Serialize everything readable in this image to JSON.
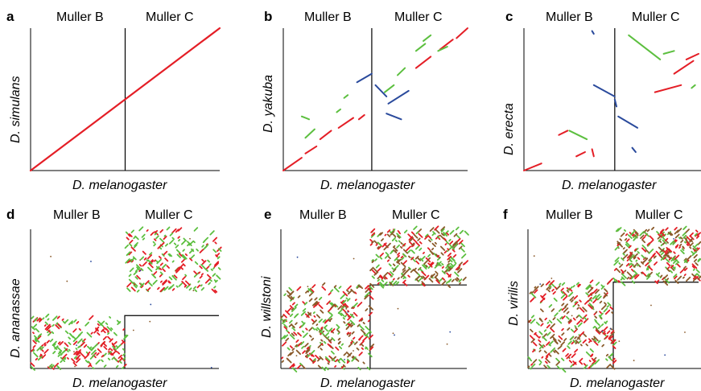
{
  "colors": {
    "axes": "#000000",
    "red": "#e41e26",
    "green": "#5cbf3f",
    "blue": "#2a4a9c",
    "brown": "#8a5a2a"
  },
  "chart_data": [
    {
      "type": "scatter",
      "panel_label": "a",
      "region_labels": [
        "Muller B",
        "Muller C"
      ],
      "xlabel": "D. melanogaster",
      "ylabel": "D. simulans",
      "divider_x_fraction": 0.5,
      "divider_type": "vertical",
      "grid": false,
      "pattern": "collinear",
      "series": [
        {
          "color": "red",
          "segments": [
            [
              0.0,
              0.0,
              0.5,
              0.5
            ],
            [
              0.5,
              0.5,
              1.0,
              1.0
            ]
          ]
        }
      ]
    },
    {
      "type": "scatter",
      "panel_label": "b",
      "region_labels": [
        "Muller B",
        "Muller C"
      ],
      "xlabel": "D. melanogaster",
      "ylabel": "D. yakuba",
      "divider_x_fraction": 0.48,
      "divider_type": "vertical",
      "grid": false,
      "pattern": "rearranged",
      "series": [
        {
          "color": "red",
          "segments": [
            [
              0.0,
              0.0,
              0.1,
              0.09
            ],
            [
              0.12,
              0.12,
              0.18,
              0.17
            ],
            [
              0.2,
              0.22,
              0.26,
              0.28
            ],
            [
              0.3,
              0.3,
              0.38,
              0.37
            ],
            [
              0.41,
              0.36,
              0.44,
              0.39
            ],
            [
              0.72,
              0.72,
              0.8,
              0.8
            ],
            [
              0.85,
              0.85,
              0.92,
              0.92
            ],
            [
              0.94,
              0.93,
              1.0,
              1.0
            ]
          ]
        },
        {
          "color": "green",
          "segments": [
            [
              0.14,
              0.36,
              0.1,
              0.38
            ],
            [
              0.17,
              0.29,
              0.12,
              0.23
            ],
            [
              0.31,
              0.43,
              0.29,
              0.41
            ],
            [
              0.35,
              0.53,
              0.33,
              0.51
            ],
            [
              0.55,
              0.55,
              0.6,
              0.6
            ],
            [
              0.62,
              0.67,
              0.66,
              0.72
            ],
            [
              0.77,
              0.89,
              0.72,
              0.84
            ],
            [
              0.8,
              0.95,
              0.76,
              0.91
            ],
            [
              0.89,
              0.87,
              0.84,
              0.84
            ]
          ]
        },
        {
          "color": "blue",
          "segments": [
            [
              0.4,
              0.62,
              0.48,
              0.68
            ],
            [
              0.5,
              0.6,
              0.56,
              0.52
            ],
            [
              0.57,
              0.47,
              0.68,
              0.56
            ],
            [
              0.56,
              0.4,
              0.64,
              0.36
            ]
          ]
        }
      ]
    },
    {
      "type": "scatter",
      "panel_label": "c",
      "region_labels": [
        "Muller B",
        "Muller C"
      ],
      "xlabel": "D. melanogaster",
      "ylabel": "D. erecta",
      "divider_x_fraction": 0.52,
      "divider_type": "vertical",
      "grid": false,
      "pattern": "rearranged",
      "series": [
        {
          "color": "red",
          "segments": [
            [
              0.0,
              0.0,
              0.1,
              0.05
            ],
            [
              0.2,
              0.25,
              0.25,
              0.28
            ],
            [
              0.3,
              0.1,
              0.35,
              0.13
            ],
            [
              0.4,
              0.1,
              0.39,
              0.15
            ],
            [
              0.75,
              0.55,
              0.9,
              0.6
            ],
            [
              0.86,
              0.68,
              0.97,
              0.77
            ],
            [
              0.93,
              0.78,
              1.0,
              0.82
            ]
          ]
        },
        {
          "color": "green",
          "segments": [
            [
              0.26,
              0.28,
              0.36,
              0.22
            ],
            [
              0.6,
              0.95,
              0.78,
              0.78
            ],
            [
              0.8,
              0.82,
              0.86,
              0.84
            ],
            [
              0.96,
              0.58,
              0.98,
              0.6
            ]
          ]
        },
        {
          "color": "blue",
          "segments": [
            [
              0.4,
              0.6,
              0.52,
              0.52
            ],
            [
              0.52,
              0.5,
              0.53,
              0.45
            ],
            [
              0.54,
              0.38,
              0.65,
              0.3
            ],
            [
              0.62,
              0.16,
              0.64,
              0.13
            ],
            [
              0.4,
              0.96,
              0.39,
              0.98
            ]
          ]
        }
      ]
    },
    {
      "type": "scatter",
      "panel_label": "d",
      "region_labels": [
        "Muller B",
        "Muller C"
      ],
      "xlabel": "D. melanogaster",
      "ylabel": "D. ananassae",
      "divider_x_fraction": 0.5,
      "divider_type": "step",
      "step_y_fraction": 0.38,
      "grid": false,
      "pattern": "scattered",
      "seed": 7,
      "series_colors": [
        "red",
        "green"
      ],
      "block_B": {
        "x_range": [
          0.0,
          0.5
        ],
        "y_range": [
          0.0,
          0.38
        ],
        "points": 220
      },
      "block_C": {
        "x_range": [
          0.5,
          1.0
        ],
        "y_range": [
          0.55,
          1.0
        ],
        "points": 220
      }
    },
    {
      "type": "scatter",
      "panel_label": "e",
      "region_labels": [
        "Muller B",
        "Muller C"
      ],
      "xlabel": "D. melanogaster",
      "ylabel": "D. willstoni",
      "divider_x_fraction": 0.48,
      "divider_type": "step",
      "step_y_fraction": 0.6,
      "grid": false,
      "pattern": "scattered",
      "seed": 21,
      "series_colors": [
        "red",
        "green",
        "brown"
      ],
      "block_B": {
        "x_range": [
          0.0,
          0.48
        ],
        "y_range": [
          0.0,
          0.6
        ],
        "points": 320
      },
      "block_C": {
        "x_range": [
          0.48,
          1.0
        ],
        "y_range": [
          0.6,
          1.0
        ],
        "points": 300
      }
    },
    {
      "type": "scatter",
      "panel_label": "f",
      "region_labels": [
        "Muller B",
        "Muller C"
      ],
      "xlabel": "D. melanogaster",
      "ylabel": "D. virilis",
      "divider_x_fraction": 0.5,
      "divider_type": "step",
      "step_y_fraction": 0.62,
      "grid": false,
      "pattern": "scattered",
      "seed": 33,
      "series_colors": [
        "red",
        "green",
        "brown"
      ],
      "block_B": {
        "x_range": [
          0.0,
          0.5
        ],
        "y_range": [
          0.0,
          0.62
        ],
        "points": 300
      },
      "block_C": {
        "x_range": [
          0.5,
          1.0
        ],
        "y_range": [
          0.62,
          1.0
        ],
        "points": 280
      }
    }
  ]
}
